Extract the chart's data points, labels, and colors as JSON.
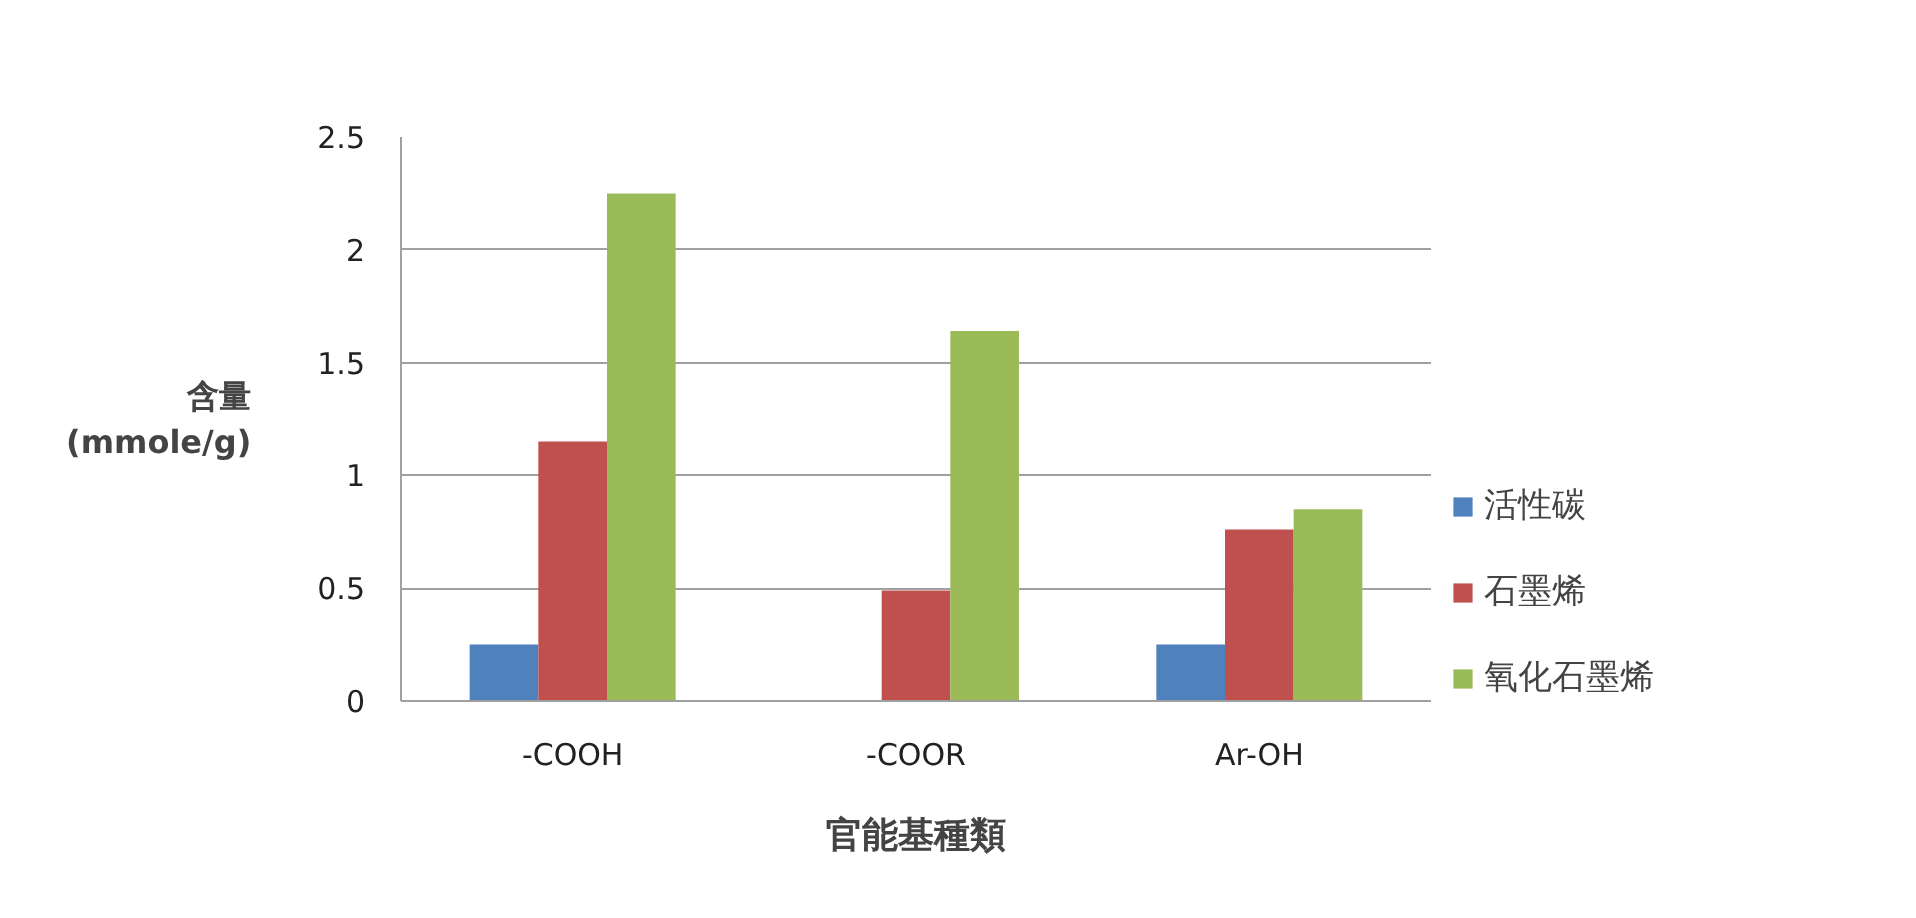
{
  "chart_data": {
    "type": "bar",
    "xlabel": "官能基種類",
    "ylabel": "含量\n(mmole/g)",
    "categories": [
      "-COOH",
      "-COOR",
      "Ar-OH"
    ],
    "series": [
      {
        "name": "活性碳",
        "color": "#4f81bd",
        "values": [
          0.25,
          null,
          0.25
        ]
      },
      {
        "name": "石墨烯",
        "color": "#c0504d",
        "values": [
          1.15,
          0.49,
          0.76
        ]
      },
      {
        "name": "氧化石墨烯",
        "color": "#9bbb59",
        "values": [
          2.25,
          1.64,
          0.85
        ]
      }
    ],
    "ylim": [
      0,
      2.5
    ],
    "yticks": [
      0,
      0.5,
      1,
      1.5,
      2,
      2.5
    ],
    "grid": "y",
    "legend": "right"
  }
}
